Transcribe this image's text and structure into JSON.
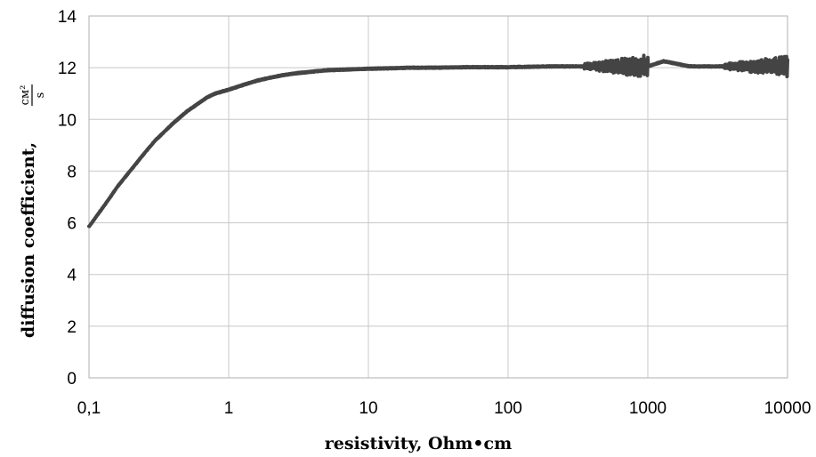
{
  "chart_data": {
    "type": "line",
    "title": "",
    "xlabel": "resistivity, Ohm•cm",
    "ylabel": "diffusion coefficient,",
    "ylabel_unit_numerator": "см²",
    "ylabel_unit_denominator": "s",
    "x_scale": "log",
    "xlim": [
      0.1,
      10000
    ],
    "ylim": [
      0,
      14
    ],
    "x_ticks": [
      0.1,
      1,
      10,
      100,
      1000,
      10000
    ],
    "x_tick_labels": [
      "0,1",
      "1",
      "10",
      "100",
      "1000",
      "10000"
    ],
    "y_ticks": [
      0,
      2,
      4,
      6,
      8,
      10,
      12,
      14
    ],
    "y_tick_labels": [
      "0",
      "2",
      "4",
      "6",
      "8",
      "10",
      "12",
      "14"
    ],
    "grid": true,
    "legend": "none",
    "line_color": "#444444",
    "series": [
      {
        "x": [
          0.1,
          0.13,
          0.16,
          0.2,
          0.25,
          0.3,
          0.4,
          0.5,
          0.6,
          0.7,
          0.8,
          1.0,
          1.3,
          1.6,
          2,
          2.5,
          3,
          4,
          5,
          7,
          10,
          15,
          20,
          30,
          50,
          100,
          200,
          400,
          700,
          1000,
          1300,
          2000,
          4000,
          7000,
          10000
        ],
        "y": [
          5.85,
          6.7,
          7.4,
          8.05,
          8.7,
          9.2,
          9.85,
          10.3,
          10.6,
          10.85,
          11.0,
          11.15,
          11.35,
          11.5,
          11.62,
          11.72,
          11.78,
          11.85,
          11.9,
          11.93,
          11.96,
          11.98,
          12.0,
          12.0,
          12.02,
          12.02,
          12.05,
          12.05,
          12.05,
          12.05,
          12.25,
          12.05,
          12.05,
          12.05,
          12.05
        ],
        "noise_band": [
          {
            "x": [
              350,
              1000
            ],
            "amplitude": [
              0.1,
              0.45
            ]
          },
          {
            "x": [
              3500,
              10000
            ],
            "amplitude": [
              0.1,
              0.4
            ]
          }
        ]
      }
    ]
  }
}
